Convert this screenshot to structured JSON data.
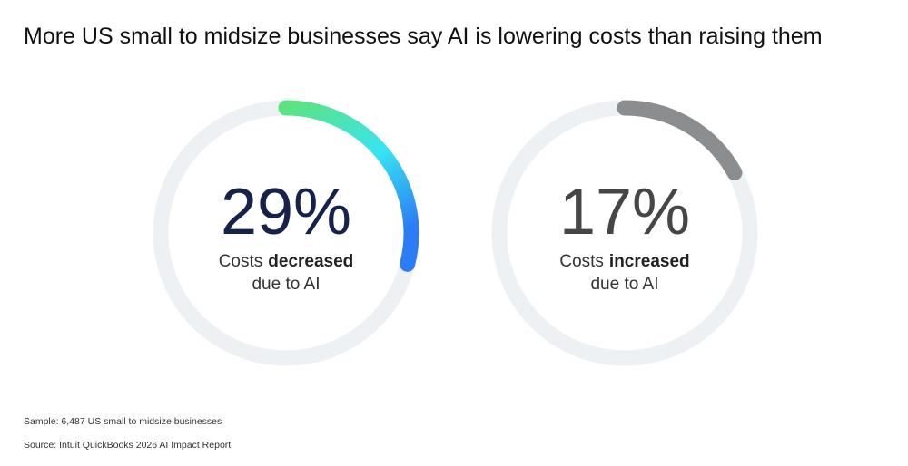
{
  "chart_data": {
    "type": "gauge",
    "title": "More US small to midsize businesses say AI is lowering costs than raising them",
    "values": [
      29,
      17
    ],
    "value_labels": [
      "29%",
      "17%"
    ],
    "labels": [
      [
        "Costs",
        "decreased",
        "due to AI"
      ],
      [
        "Costs",
        "increased",
        "due to AI"
      ]
    ],
    "ylim": [
      0,
      100
    ],
    "colors": [
      [
        "#5ce381",
        "#38e4f2",
        "#2b7cf6"
      ],
      [
        "#8b8d8f",
        "#8b8d8f"
      ]
    ],
    "value_label_colors": [
      "#15234a",
      "#464646"
    ],
    "track_color": "#eef1f4",
    "notes": [
      "Sample: 6,487 US small to midsize businesses",
      "Source: Intuit QuickBooks 2026 AI Impact Report"
    ]
  }
}
